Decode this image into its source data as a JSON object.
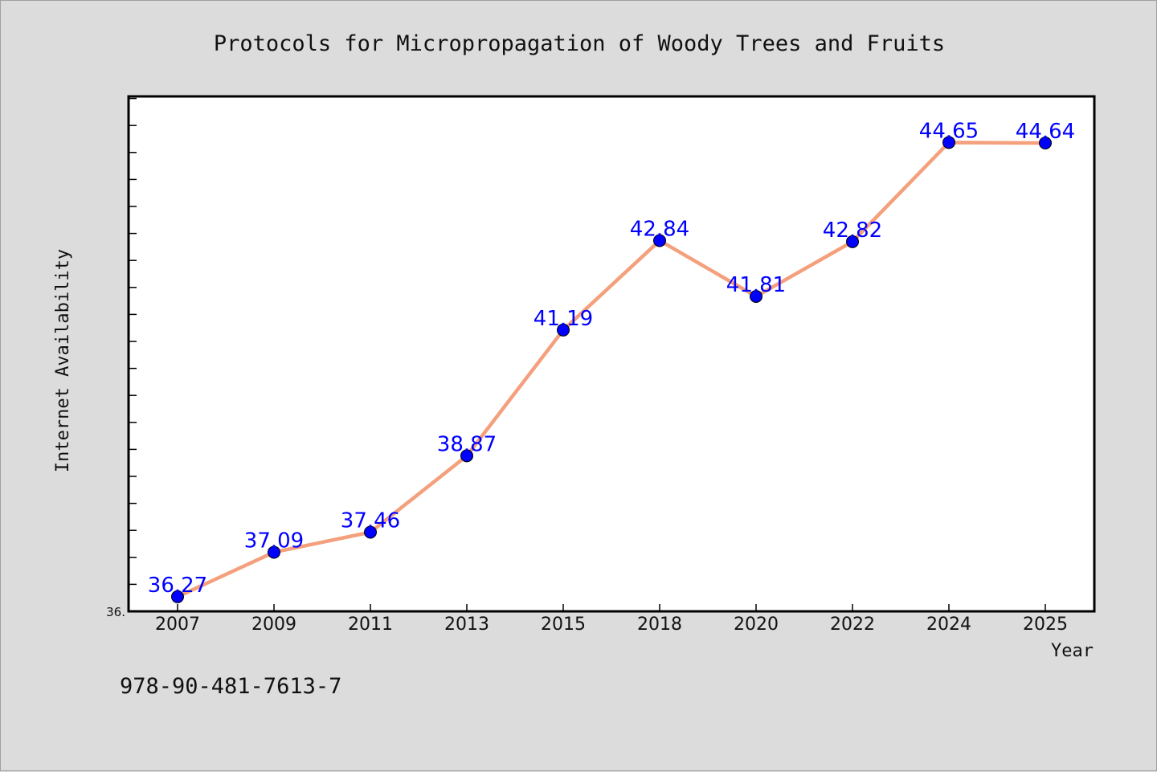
{
  "chart_data": {
    "type": "line",
    "title": "Protocols for Micropropagation of Woody Trees and Fruits",
    "xlabel": "Year",
    "ylabel": "Internet Availability",
    "categories": [
      "2007",
      "2009",
      "2011",
      "2013",
      "2015",
      "2018",
      "2020",
      "2022",
      "2024",
      "2025"
    ],
    "series": [
      {
        "values": [
          36.27,
          37.09,
          37.46,
          38.87,
          41.19,
          42.84,
          41.81,
          42.82,
          44.65,
          44.64
        ],
        "labels": [
          "36.27",
          "37.09",
          "37.46",
          "38.87",
          "41.19",
          "42.84",
          "41.81",
          "42.82",
          "44.65",
          "44.64"
        ]
      }
    ],
    "ylim": [
      36.0,
      45.5
    ],
    "ytick_label": "36.",
    "grid": false,
    "legend": "none",
    "colors": {
      "line": "#f4a07c",
      "marker": "#0000ff",
      "label": "#0000ff",
      "plot_bg": "#ffffff",
      "page_bg": "#dcdcdc"
    }
  },
  "footer": {
    "isbn": "978-90-481-7613-7"
  }
}
